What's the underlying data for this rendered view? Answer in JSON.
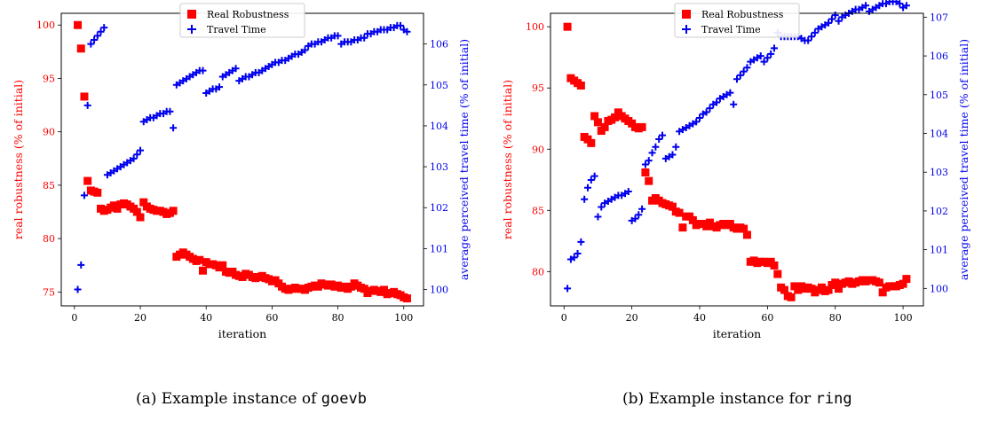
{
  "chart_data": [
    {
      "type": "scatter",
      "caption_text": "(a) Example instance of ",
      "caption_code": "goevb",
      "xlabel": "iteration",
      "ylabel_left": "real robustness (% of initial)",
      "ylabel_right": "average perceived travel time (% of initial)",
      "xlim": [
        -4,
        106
      ],
      "ylim_left": [
        73.7,
        101.1
      ],
      "ylim_right": [
        99.6,
        106.75
      ],
      "xticks": [
        0,
        20,
        40,
        60,
        80,
        100
      ],
      "yticks_left": [
        75,
        80,
        85,
        90,
        95,
        100
      ],
      "yticks_right": [
        100,
        101,
        102,
        103,
        104,
        105,
        106
      ],
      "legend": [
        "Real Robustness",
        "Travel Time"
      ],
      "legend_position": "top",
      "colors": {
        "robustness": "#ff0000",
        "travel": "#0000ee"
      },
      "series": [
        {
          "name": "Real Robustness",
          "axis": "left",
          "x": [
            1,
            2,
            3,
            4,
            5,
            6,
            7,
            8,
            9,
            10,
            11,
            12,
            13,
            14,
            15,
            16,
            17,
            18,
            19,
            20,
            21,
            22,
            23,
            24,
            25,
            26,
            27,
            28,
            29,
            30,
            31,
            32,
            33,
            34,
            35,
            36,
            37,
            38,
            39,
            40,
            41,
            42,
            43,
            44,
            45,
            46,
            47,
            48,
            49,
            50,
            51,
            52,
            53,
            54,
            55,
            56,
            57,
            58,
            59,
            60,
            61,
            62,
            63,
            64,
            65,
            66,
            67,
            68,
            69,
            70,
            71,
            72,
            73,
            74,
            75,
            76,
            77,
            78,
            79,
            80,
            81,
            82,
            83,
            84,
            85,
            86,
            87,
            88,
            89,
            90,
            91,
            92,
            93,
            94,
            95,
            96,
            97,
            98,
            99,
            100,
            101
          ],
          "y": [
            100.0,
            97.8,
            93.3,
            85.4,
            84.5,
            84.4,
            84.3,
            82.8,
            82.6,
            82.7,
            82.9,
            83.1,
            82.8,
            83.2,
            83.3,
            83.2,
            83.0,
            82.8,
            82.5,
            82.0,
            83.4,
            83.0,
            82.8,
            82.7,
            82.6,
            82.6,
            82.5,
            82.3,
            82.4,
            82.6,
            78.3,
            78.5,
            78.7,
            78.5,
            78.3,
            78.1,
            77.9,
            78.0,
            77.0,
            77.8,
            77.6,
            77.6,
            77.5,
            77.3,
            77.5,
            76.9,
            76.8,
            76.9,
            76.6,
            76.5,
            76.4,
            76.7,
            76.6,
            76.4,
            76.3,
            76.4,
            76.5,
            76.3,
            76.2,
            76.0,
            76.1,
            75.8,
            75.5,
            75.3,
            75.2,
            75.3,
            75.4,
            75.3,
            75.3,
            75.2,
            75.4,
            75.5,
            75.6,
            75.5,
            75.8,
            75.7,
            75.6,
            75.7,
            75.5,
            75.6,
            75.4,
            75.5,
            75.3,
            75.5,
            75.8,
            75.6,
            75.4,
            75.3,
            74.9,
            75.1,
            75.2,
            75.1,
            75.0,
            75.2,
            74.8,
            74.9,
            75.0,
            74.8,
            74.7,
            74.5,
            74.4
          ]
        },
        {
          "name": "Travel Time",
          "axis": "right",
          "x": [
            1,
            2,
            3,
            4,
            5,
            6,
            7,
            8,
            9,
            10,
            11,
            12,
            13,
            14,
            15,
            16,
            17,
            18,
            19,
            20,
            21,
            22,
            23,
            24,
            25,
            26,
            27,
            28,
            29,
            30,
            31,
            32,
            33,
            34,
            35,
            36,
            37,
            38,
            39,
            40,
            41,
            42,
            43,
            44,
            45,
            46,
            47,
            48,
            49,
            50,
            51,
            52,
            53,
            54,
            55,
            56,
            57,
            58,
            59,
            60,
            61,
            62,
            63,
            64,
            65,
            66,
            67,
            68,
            69,
            70,
            71,
            72,
            73,
            74,
            75,
            76,
            77,
            78,
            79,
            80,
            81,
            82,
            83,
            84,
            85,
            86,
            87,
            88,
            89,
            90,
            91,
            92,
            93,
            94,
            95,
            96,
            97,
            98,
            99,
            100,
            101
          ],
          "y": [
            100.0,
            100.6,
            102.3,
            104.5,
            106.0,
            106.1,
            106.2,
            106.3,
            106.4,
            102.8,
            102.85,
            102.9,
            102.95,
            103.0,
            103.05,
            103.1,
            103.15,
            103.2,
            103.3,
            103.4,
            104.1,
            104.15,
            104.2,
            104.2,
            104.25,
            104.3,
            104.3,
            104.35,
            104.35,
            103.95,
            105.0,
            105.05,
            105.1,
            105.15,
            105.2,
            105.25,
            105.3,
            105.35,
            105.35,
            104.8,
            104.85,
            104.9,
            104.9,
            104.95,
            105.2,
            105.25,
            105.3,
            105.35,
            105.4,
            105.1,
            105.15,
            105.2,
            105.2,
            105.25,
            105.3,
            105.3,
            105.35,
            105.4,
            105.45,
            105.5,
            105.55,
            105.55,
            105.6,
            105.6,
            105.65,
            105.7,
            105.75,
            105.75,
            105.8,
            105.85,
            105.95,
            106.0,
            106.0,
            106.05,
            106.05,
            106.1,
            106.15,
            106.15,
            106.2,
            106.2,
            106.0,
            106.05,
            106.05,
            106.05,
            106.1,
            106.1,
            106.15,
            106.15,
            106.25,
            106.25,
            106.3,
            106.3,
            106.35,
            106.35,
            106.35,
            106.4,
            106.4,
            106.45,
            106.45,
            106.35,
            106.3
          ]
        }
      ]
    },
    {
      "type": "scatter",
      "caption_text": "(b) Example instance for ",
      "caption_code": "ring",
      "xlabel": "iteration",
      "ylabel_left": "real robustness (% of initial)",
      "ylabel_right": "average perceived travel time (% of initial)",
      "xlim": [
        -4,
        106
      ],
      "ylim_left": [
        77.2,
        101.1
      ],
      "ylim_right": [
        99.55,
        107.1
      ],
      "xticks": [
        0,
        20,
        40,
        60,
        80,
        100
      ],
      "yticks_left": [
        80,
        85,
        90,
        95,
        100
      ],
      "yticks_right": [
        100,
        101,
        102,
        103,
        104,
        105,
        106,
        107
      ],
      "legend": [
        "Real Robustness",
        "Travel Time"
      ],
      "legend_position": "top",
      "colors": {
        "robustness": "#ff0000",
        "travel": "#0000ee"
      },
      "series": [
        {
          "name": "Real Robustness",
          "axis": "left",
          "x": [
            1,
            2,
            3,
            4,
            5,
            6,
            7,
            8,
            9,
            10,
            11,
            12,
            13,
            14,
            15,
            16,
            17,
            18,
            19,
            20,
            21,
            22,
            23,
            24,
            25,
            26,
            27,
            28,
            29,
            30,
            31,
            32,
            33,
            34,
            35,
            36,
            37,
            38,
            39,
            40,
            41,
            42,
            43,
            44,
            45,
            46,
            47,
            48,
            49,
            50,
            51,
            52,
            53,
            54,
            55,
            56,
            57,
            58,
            59,
            60,
            61,
            62,
            63,
            64,
            65,
            66,
            67,
            68,
            69,
            70,
            71,
            72,
            73,
            74,
            75,
            76,
            77,
            78,
            79,
            80,
            81,
            82,
            83,
            84,
            85,
            86,
            87,
            88,
            89,
            90,
            91,
            92,
            93,
            94,
            95,
            96,
            97,
            98,
            99,
            100,
            101
          ],
          "y": [
            100.0,
            95.8,
            95.6,
            95.4,
            95.2,
            91.0,
            90.8,
            90.5,
            92.7,
            92.2,
            91.5,
            91.8,
            92.3,
            92.4,
            92.6,
            93.0,
            92.7,
            92.5,
            92.3,
            92.1,
            91.8,
            91.7,
            91.8,
            88.1,
            87.4,
            85.8,
            86.0,
            85.8,
            85.6,
            85.5,
            85.4,
            85.3,
            84.9,
            84.8,
            83.6,
            84.5,
            84.5,
            84.2,
            83.8,
            83.9,
            83.9,
            83.7,
            84.0,
            83.7,
            83.6,
            83.8,
            83.9,
            83.8,
            83.9,
            83.6,
            83.5,
            83.6,
            83.5,
            83.0,
            80.8,
            80.9,
            80.7,
            80.8,
            80.8,
            80.7,
            80.8,
            80.5,
            79.8,
            78.7,
            78.5,
            78.0,
            77.9,
            78.8,
            78.5,
            78.8,
            78.6,
            78.7,
            78.6,
            78.3,
            78.5,
            78.7,
            78.4,
            78.5,
            78.9,
            79.1,
            78.6,
            79.0,
            79.1,
            79.2,
            79.0,
            79.1,
            79.2,
            79.3,
            79.2,
            79.3,
            79.3,
            79.2,
            79.1,
            78.3,
            78.7,
            78.8,
            78.8,
            78.8,
            78.9,
            79.0,
            79.4
          ]
        },
        {
          "name": "Travel Time",
          "axis": "right",
          "x": [
            1,
            2,
            3,
            4,
            5,
            6,
            7,
            8,
            9,
            10,
            11,
            12,
            13,
            14,
            15,
            16,
            17,
            18,
            19,
            20,
            21,
            22,
            23,
            24,
            25,
            26,
            27,
            28,
            29,
            30,
            31,
            32,
            33,
            34,
            35,
            36,
            37,
            38,
            39,
            40,
            41,
            42,
            43,
            44,
            45,
            46,
            47,
            48,
            49,
            50,
            51,
            52,
            53,
            54,
            55,
            56,
            57,
            58,
            59,
            60,
            61,
            62,
            63,
            64,
            65,
            66,
            67,
            68,
            69,
            70,
            71,
            72,
            73,
            74,
            75,
            76,
            77,
            78,
            79,
            80,
            81,
            82,
            83,
            84,
            85,
            86,
            87,
            88,
            89,
            90,
            91,
            92,
            93,
            94,
            95,
            96,
            97,
            98,
            99,
            100,
            101
          ],
          "y": [
            100.0,
            100.75,
            100.8,
            100.9,
            101.2,
            102.3,
            102.6,
            102.8,
            102.9,
            101.85,
            102.1,
            102.2,
            102.25,
            102.3,
            102.35,
            102.4,
            102.4,
            102.45,
            102.5,
            101.75,
            101.8,
            101.9,
            102.05,
            103.2,
            103.3,
            103.5,
            103.65,
            103.85,
            103.95,
            103.35,
            103.4,
            103.45,
            103.65,
            104.05,
            104.1,
            104.15,
            104.2,
            104.25,
            104.3,
            104.4,
            104.5,
            104.55,
            104.65,
            104.75,
            104.8,
            104.9,
            104.95,
            105.0,
            105.05,
            104.75,
            105.4,
            105.5,
            105.6,
            105.7,
            105.85,
            105.9,
            105.95,
            106.0,
            105.85,
            105.95,
            106.05,
            106.2,
            106.6,
            106.5,
            106.5,
            106.5,
            106.5,
            106.5,
            106.5,
            106.45,
            106.4,
            106.4,
            106.5,
            106.6,
            106.7,
            106.75,
            106.8,
            106.85,
            106.95,
            107.05,
            106.9,
            107.0,
            107.05,
            107.1,
            107.15,
            107.2,
            107.2,
            107.25,
            107.3,
            107.15,
            107.2,
            107.25,
            107.3,
            107.35,
            107.35,
            107.4,
            107.4,
            107.4,
            107.35,
            107.25,
            107.3
          ]
        }
      ]
    }
  ]
}
